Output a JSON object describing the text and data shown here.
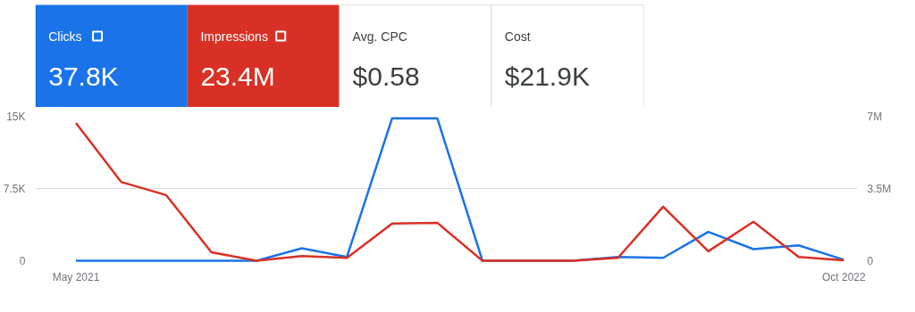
{
  "chart_data": {
    "type": "line",
    "categories": [
      "May 2021",
      null,
      null,
      null,
      null,
      null,
      null,
      null,
      null,
      null,
      null,
      null,
      null,
      null,
      null,
      null,
      null,
      "Oct 2022"
    ],
    "series": [
      {
        "name": "Clicks",
        "color": "#1a73e8",
        "values": [
          0,
          0,
          0,
          0,
          0,
          1300,
          400,
          14800,
          14800,
          0,
          0,
          0,
          400,
          300,
          3000,
          1200,
          1600,
          100
        ]
      },
      {
        "name": "Impressions",
        "color": "#d93025",
        "axis": "y2",
        "values": [
          6680000,
          3820000,
          3180000,
          410000,
          0,
          230000,
          140000,
          1800000,
          1840000,
          0,
          0,
          0,
          140000,
          2620000,
          460000,
          1890000,
          180000,
          20000
        ]
      }
    ],
    "ylim": [
      0,
      15000
    ],
    "yticks": [
      0,
      {
        "value": 7500,
        "label": "7.5K"
      },
      {
        "value": 15000,
        "label": "15K"
      }
    ],
    "y2lim": [
      0,
      7000000
    ],
    "y2ticks": [
      0,
      {
        "value": 3500000,
        "label": "3.5M"
      },
      {
        "value": 7000000,
        "label": "7M"
      }
    ],
    "grid": "y",
    "legend": "top left",
    "annotations": [
      "37.8K",
      "23.4M",
      "Avg. CPC",
      "$0.58",
      "Cost",
      "$21.9K"
    ]
  }
}
